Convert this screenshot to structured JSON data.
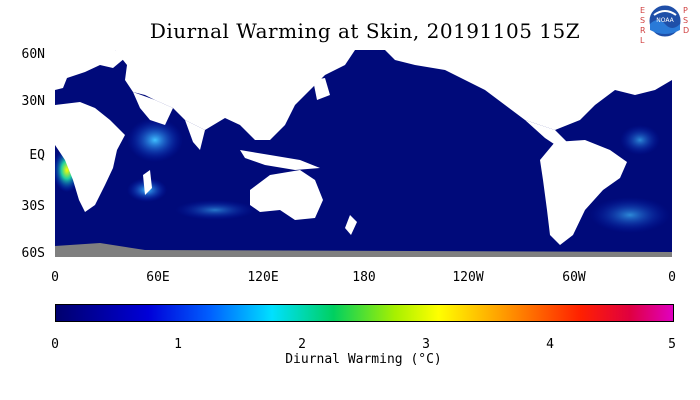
{
  "title": "Diurnal Warming at Skin, 20191105 15Z",
  "logo": {
    "left_letters": [
      "E",
      "S",
      "R",
      "L"
    ],
    "right_letters": [
      "P",
      "S",
      "D"
    ],
    "badge_text": "NOAA",
    "icon": "noaa-logo-icon"
  },
  "map": {
    "lat_labels": [
      "60N",
      "30N",
      "EQ",
      "30S",
      "60S"
    ],
    "lon_labels": [
      "0",
      "60E",
      "120E",
      "180",
      "120W",
      "60W",
      "0"
    ],
    "colors": {
      "ocean": "#000a7a",
      "land": "#ffffff",
      "ice": "#7f7f7f"
    }
  },
  "colorbar": {
    "ticks": [
      "0",
      "1",
      "2",
      "3",
      "4",
      "5"
    ],
    "label": "Diurnal Warming (°C)",
    "range": [
      0,
      5
    ]
  }
}
